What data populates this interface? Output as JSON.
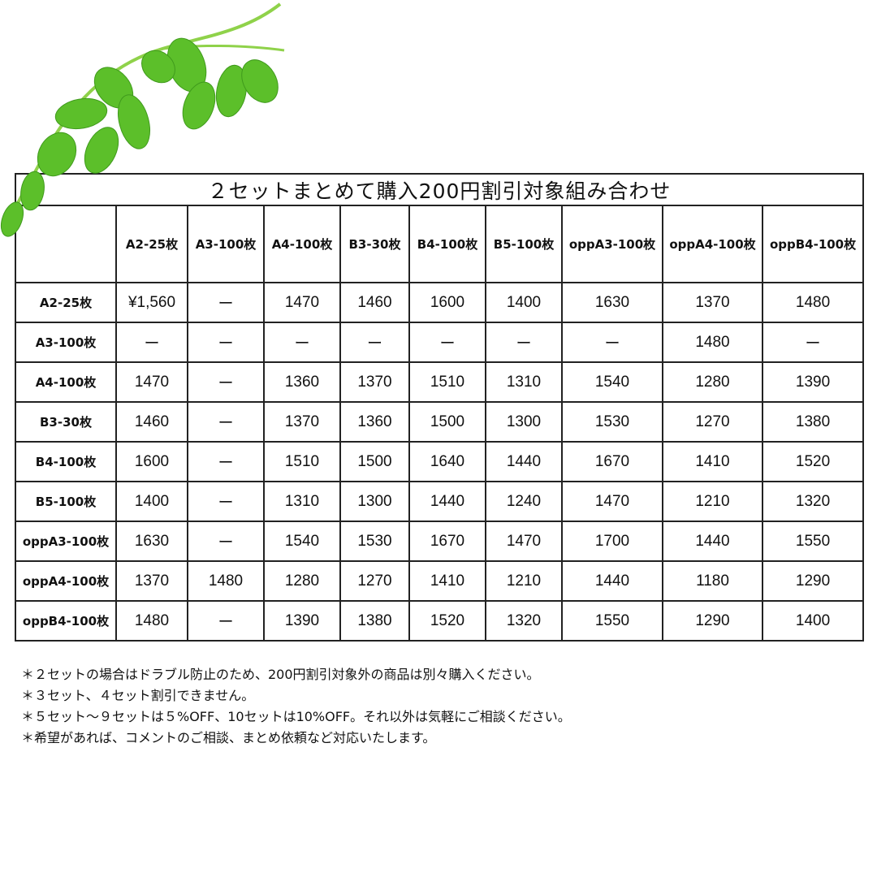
{
  "title": "２セットまとめて購入200円割引対象組み合わせ",
  "columns": [
    "A2-25枚",
    "A3-100枚",
    "A4-100枚",
    "B3-30枚",
    "B4-100枚",
    "B5-100枚",
    "oppA3-100枚",
    "oppA4-100枚",
    "oppB4-100枚"
  ],
  "rows": [
    {
      "label": "A2-25枚",
      "values": [
        "¥1,560",
        "ー",
        "1470",
        "1460",
        "1600",
        "1400",
        "1630",
        "1370",
        "1480"
      ]
    },
    {
      "label": "A3-100枚",
      "values": [
        "ー",
        "ー",
        "ー",
        "ー",
        "ー",
        "ー",
        "ー",
        "1480",
        "ー"
      ]
    },
    {
      "label": "A4-100枚",
      "values": [
        "1470",
        "ー",
        "1360",
        "1370",
        "1510",
        "1310",
        "1540",
        "1280",
        "1390"
      ]
    },
    {
      "label": "B3-30枚",
      "values": [
        "1460",
        "ー",
        "1370",
        "1360",
        "1500",
        "1300",
        "1530",
        "1270",
        "1380"
      ]
    },
    {
      "label": "B4-100枚",
      "values": [
        "1600",
        "ー",
        "1510",
        "1500",
        "1640",
        "1440",
        "1670",
        "1410",
        "1520"
      ]
    },
    {
      "label": "B5-100枚",
      "values": [
        "1400",
        "ー",
        "1310",
        "1300",
        "1440",
        "1240",
        "1470",
        "1210",
        "1320"
      ]
    },
    {
      "label": "oppA3-100枚",
      "values": [
        "1630",
        "ー",
        "1540",
        "1530",
        "1670",
        "1470",
        "1700",
        "1440",
        "1550"
      ]
    },
    {
      "label": "oppA4-100枚",
      "values": [
        "1370",
        "1480",
        "1280",
        "1270",
        "1410",
        "1210",
        "1440",
        "1180",
        "1290"
      ]
    },
    {
      "label": "oppB4-100枚",
      "values": [
        "1480",
        "ー",
        "1390",
        "1380",
        "1520",
        "1320",
        "1550",
        "1290",
        "1400"
      ]
    }
  ],
  "notes": [
    "＊２セットの場合はドラブル防止のため、200円割引対象外の商品は別々購入ください。",
    "＊３セット、４セット割引できません。",
    "＊５セット～９セットは５%OFF、10セットは10%OFF。それ以外は気軽にご相談ください。",
    "＊希望があれば、コメントのご相談、まとめ依頼など対応いたします。"
  ],
  "colors": {
    "leaf": "#5cbf2a",
    "leaf_light": "#9be04a",
    "border": "#222222"
  }
}
